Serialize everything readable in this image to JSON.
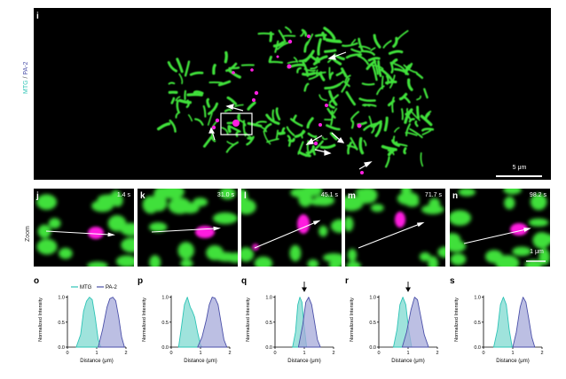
{
  "panel_i": {
    "label": "i",
    "side_label_mtg": "MTG",
    "side_label_sep": " / ",
    "side_label_pa2": "PA-2",
    "scalebar": "5 μm"
  },
  "zoom": {
    "row_label": "Zoom",
    "scalebar": "1 μm",
    "panels": [
      {
        "label": "j",
        "time": "1.4 s"
      },
      {
        "label": "k",
        "time": "31.0 s"
      },
      {
        "label": "l",
        "time": "45.1 s"
      },
      {
        "label": "m",
        "time": "71.7 s"
      },
      {
        "label": "n",
        "time": "98.2 s"
      }
    ]
  },
  "colors": {
    "mtg": "#2ec4b6",
    "pa2": "#4a4fa8",
    "green": "#3fe03a",
    "magenta": "#ff1fe0"
  },
  "chart_data": [
    {
      "label": "o",
      "type": "area",
      "ylabel": "Normalized Intensity",
      "xlabel": "Distance (μm)",
      "xlim": [
        0,
        2
      ],
      "ylim": [
        0,
        1.1
      ],
      "xticks": [
        "0",
        "1",
        "2"
      ],
      "yticks": [
        "0.0",
        "0.5",
        "1.0"
      ],
      "legend": [
        "MTG",
        "PA-2"
      ],
      "series": [
        {
          "name": "MTG",
          "x": [
            0.3,
            0.45,
            0.55,
            0.65,
            0.75,
            0.85,
            0.95,
            1.05,
            1.15
          ],
          "values": [
            0,
            0.25,
            0.72,
            0.92,
            1.0,
            0.95,
            0.6,
            0.15,
            0
          ]
        },
        {
          "name": "PA-2",
          "x": [
            1.05,
            1.2,
            1.35,
            1.45,
            1.55,
            1.65,
            1.75,
            1.85,
            1.95
          ],
          "values": [
            0,
            0.35,
            0.8,
            0.97,
            1.0,
            0.93,
            0.6,
            0.2,
            0
          ]
        }
      ]
    },
    {
      "label": "p",
      "type": "area",
      "ylabel": "Normalized Intensity",
      "xlabel": "Distance (μm)",
      "xlim": [
        0,
        2
      ],
      "ylim": [
        0,
        1.1
      ],
      "xticks": [
        "0",
        "1",
        "2"
      ],
      "yticks": [
        "0.0",
        "0.5",
        "1.0"
      ],
      "series": [
        {
          "name": "MTG",
          "x": [
            0.25,
            0.35,
            0.45,
            0.55,
            0.65,
            0.72,
            0.8,
            0.9,
            1.0,
            1.05
          ],
          "values": [
            0,
            0.4,
            0.85,
            1.0,
            0.8,
            0.72,
            0.6,
            0.3,
            0.05,
            0
          ]
        },
        {
          "name": "PA-2",
          "x": [
            0.9,
            1.05,
            1.2,
            1.3,
            1.4,
            1.5,
            1.6,
            1.7,
            1.8,
            1.9
          ],
          "values": [
            0,
            0.2,
            0.55,
            0.85,
            1.0,
            0.98,
            0.85,
            0.5,
            0.15,
            0
          ]
        }
      ]
    },
    {
      "label": "q",
      "type": "area",
      "ylabel": "Normalized Intensity",
      "xlabel": "Distance (μm)",
      "xlim": [
        0,
        2
      ],
      "ylim": [
        0,
        1.1
      ],
      "xticks": [
        "0",
        "1",
        "2"
      ],
      "yticks": [
        "0.0",
        "0.5",
        "1.0"
      ],
      "arrow_x": 1.0,
      "series": [
        {
          "name": "MTG",
          "x": [
            0.6,
            0.7,
            0.78,
            0.85,
            0.92,
            1.0,
            1.08
          ],
          "values": [
            0,
            0.3,
            0.85,
            1.0,
            0.9,
            0.4,
            0
          ]
        },
        {
          "name": "PA-2",
          "x": [
            0.8,
            0.95,
            1.05,
            1.15,
            1.25,
            1.35,
            1.45,
            1.55
          ],
          "values": [
            0,
            0.45,
            0.9,
            1.0,
            0.85,
            0.5,
            0.15,
            0
          ]
        }
      ]
    },
    {
      "label": "r",
      "type": "area",
      "ylabel": "Normalized Intensity",
      "xlabel": "Distance (μm)",
      "xlim": [
        0,
        2
      ],
      "ylim": [
        0,
        1.1
      ],
      "xticks": [
        "0",
        "1",
        "2"
      ],
      "yticks": [
        "0.0",
        "0.5",
        "1.0"
      ],
      "arrow_x": 1.0,
      "series": [
        {
          "name": "MTG",
          "x": [
            0.5,
            0.62,
            0.72,
            0.82,
            0.92,
            1.02,
            1.12
          ],
          "values": [
            0,
            0.35,
            0.85,
            1.0,
            0.85,
            0.35,
            0
          ]
        },
        {
          "name": "PA-2",
          "x": [
            0.8,
            0.95,
            1.1,
            1.22,
            1.32,
            1.42,
            1.55,
            1.7
          ],
          "values": [
            0,
            0.3,
            0.75,
            1.0,
            0.95,
            0.65,
            0.25,
            0
          ]
        }
      ]
    },
    {
      "label": "s",
      "type": "area",
      "ylabel": "Normalized Intensity",
      "xlabel": "Distance (μm)",
      "xlim": [
        0,
        2
      ],
      "ylim": [
        0,
        1.1
      ],
      "xticks": [
        "0",
        "1",
        "2"
      ],
      "yticks": [
        "0.0",
        "0.5",
        "1.0"
      ],
      "series": [
        {
          "name": "MTG",
          "x": [
            0.35,
            0.48,
            0.58,
            0.68,
            0.78,
            0.88,
            0.98
          ],
          "values": [
            0,
            0.35,
            0.85,
            1.0,
            0.85,
            0.35,
            0
          ]
        },
        {
          "name": "PA-2",
          "x": [
            1.0,
            1.12,
            1.25,
            1.35,
            1.45,
            1.55,
            1.65,
            1.75
          ],
          "values": [
            0,
            0.3,
            0.8,
            1.0,
            0.9,
            0.55,
            0.2,
            0
          ]
        }
      ]
    }
  ]
}
